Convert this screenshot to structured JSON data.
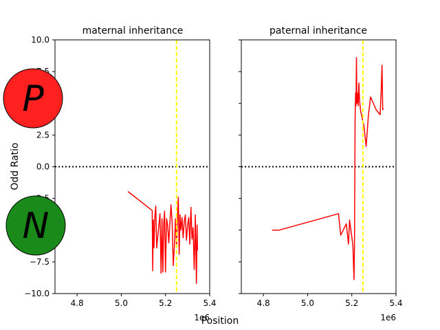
{
  "chart_data": {
    "type": "line",
    "shared": {
      "xlabel": "Position",
      "ylabel": "Odd Ratio",
      "x_offset_label": "1e6",
      "xlim": [
        4.7,
        5.4
      ],
      "ylim": [
        -10,
        10
      ],
      "x_ticks": [
        4.8,
        5.0,
        5.2,
        5.4
      ],
      "x_tick_labels": [
        "4.8",
        "5.0",
        "5.2",
        "5.4"
      ],
      "y_ticks": [
        -10,
        -7.5,
        -5,
        -2.5,
        0,
        2.5,
        5,
        7.5,
        10
      ],
      "y_tick_labels": [
        "−10.0",
        "−7.5",
        "−5.0",
        "−2.5",
        "0.0",
        "2.5",
        "5.0",
        "7.5",
        "10.0"
      ],
      "reference_hline": {
        "y": 0,
        "style": "dotted",
        "color": "#000000"
      },
      "marker_vline": {
        "x": 5.25,
        "style": "dashed",
        "color": "#ffff00"
      },
      "series_color": "#ff0000",
      "grid": false
    },
    "panels": [
      {
        "title": "maternal inheritance",
        "show_y_tick_labels": true,
        "points": [
          [
            5.03,
            -1.95
          ],
          [
            5.14,
            -3.45
          ],
          [
            5.142,
            -8.2
          ],
          [
            5.145,
            -4.2
          ],
          [
            5.148,
            -6.4
          ],
          [
            5.152,
            -3.9
          ],
          [
            5.156,
            -3.1
          ],
          [
            5.16,
            -6.4
          ],
          [
            5.165,
            -5.5
          ],
          [
            5.17,
            -4.6
          ],
          [
            5.175,
            -3.7
          ],
          [
            5.18,
            -8.4
          ],
          [
            5.184,
            -4.1
          ],
          [
            5.188,
            -8.3
          ],
          [
            5.192,
            -4.5
          ],
          [
            5.196,
            -3.5
          ],
          [
            5.2,
            -8.3
          ],
          [
            5.205,
            -4.1
          ],
          [
            5.21,
            -4.6
          ],
          [
            5.215,
            -6.0
          ],
          [
            5.22,
            -4.5
          ],
          [
            5.225,
            -3.0
          ],
          [
            5.23,
            -4.4
          ],
          [
            5.235,
            -7.8
          ],
          [
            5.24,
            -6.3
          ],
          [
            5.245,
            -4.1
          ],
          [
            5.25,
            -6.4
          ],
          [
            5.255,
            -3.6
          ],
          [
            5.258,
            -2.4
          ],
          [
            5.262,
            -6.9
          ],
          [
            5.266,
            -3.8
          ],
          [
            5.27,
            -5.0
          ],
          [
            5.275,
            -4.0
          ],
          [
            5.28,
            -5.6
          ],
          [
            5.285,
            -4.3
          ],
          [
            5.29,
            -3.8
          ],
          [
            5.295,
            -5.8
          ],
          [
            5.3,
            -4.6
          ],
          [
            5.305,
            -4.0
          ],
          [
            5.31,
            -6.1
          ],
          [
            5.315,
            -3.2
          ],
          [
            5.32,
            -5.7
          ],
          [
            5.325,
            -4.8
          ],
          [
            5.33,
            -8.1
          ],
          [
            5.335,
            -3.8
          ],
          [
            5.34,
            -9.2
          ],
          [
            5.343,
            -4.6
          ],
          [
            5.345,
            -6.6
          ]
        ]
      },
      {
        "title": "paternal inheritance",
        "show_y_tick_labels": false,
        "points": [
          [
            4.84,
            -5.0
          ],
          [
            4.87,
            -5.0
          ],
          [
            5.14,
            -3.7
          ],
          [
            5.15,
            -5.4
          ],
          [
            5.175,
            -4.5
          ],
          [
            5.185,
            -6.1
          ],
          [
            5.19,
            -4.2
          ],
          [
            5.205,
            -6.2
          ],
          [
            5.21,
            -8.9
          ],
          [
            5.212,
            -6.5
          ],
          [
            5.215,
            3.8
          ],
          [
            5.217,
            5.8
          ],
          [
            5.219,
            4.8
          ],
          [
            5.221,
            8.6
          ],
          [
            5.223,
            5.0
          ],
          [
            5.226,
            5.8
          ],
          [
            5.229,
            4.8
          ],
          [
            5.232,
            6.6
          ],
          [
            5.235,
            5.2
          ],
          [
            5.24,
            4.4
          ],
          [
            5.255,
            3.2
          ],
          [
            5.265,
            1.6
          ],
          [
            5.275,
            4.0
          ],
          [
            5.285,
            5.5
          ],
          [
            5.31,
            4.5
          ],
          [
            5.328,
            4.1
          ],
          [
            5.333,
            6.0
          ],
          [
            5.337,
            8.0
          ],
          [
            5.34,
            4.5
          ],
          [
            5.343,
            4.6
          ]
        ]
      }
    ]
  },
  "overlays": {
    "badge_top": {
      "letter": "P",
      "fill": "#ff2020"
    },
    "badge_bottom": {
      "letter": "N",
      "fill": "#1a8a1a"
    }
  }
}
